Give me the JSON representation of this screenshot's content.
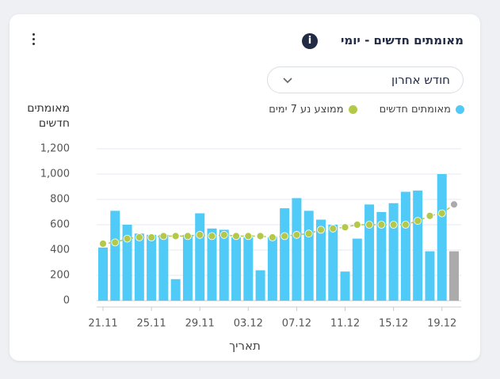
{
  "chart_data": {
    "type": "combo",
    "title": "מאומתים חדשים - יומי",
    "filter": "חודש אחרון",
    "y_label": "מאומתים חדשים",
    "x_label": "תאריך",
    "categories": [
      "21.11",
      null,
      null,
      null,
      "25.11",
      null,
      null,
      null,
      "29.11",
      null,
      null,
      null,
      "03.12",
      null,
      null,
      null,
      "07.12",
      null,
      null,
      null,
      "11.12",
      null,
      null,
      null,
      "15.12",
      null,
      null,
      null,
      "19.12",
      null
    ],
    "series": [
      {
        "name": "מאומתים חדשים",
        "type": "bar",
        "color": "#50cbf7",
        "values": [
          420,
          710,
          600,
          530,
          520,
          520,
          170,
          520,
          690,
          570,
          560,
          500,
          500,
          240,
          500,
          730,
          810,
          710,
          640,
          600,
          230,
          490,
          760,
          700,
          770,
          860,
          870,
          390,
          1000,
          390
        ]
      },
      {
        "name": "ממוצע נע 7 ימים",
        "type": "line",
        "color": "#b4c84a",
        "values": [
          450,
          460,
          490,
          500,
          500,
          510,
          510,
          510,
          520,
          510,
          520,
          510,
          510,
          510,
          500,
          510,
          520,
          530,
          560,
          570,
          580,
          600,
          600,
          600,
          600,
          600,
          630,
          670,
          690,
          760
        ]
      }
    ],
    "partial_color": "#ababab",
    "ylim": [
      0,
      1200
    ],
    "yticks": [
      0,
      200,
      400,
      600,
      800,
      {
        "value": 1000,
        "label": "1,000"
      },
      {
        "value": 1200,
        "label": "1,200"
      }
    ],
    "grid": true
  }
}
